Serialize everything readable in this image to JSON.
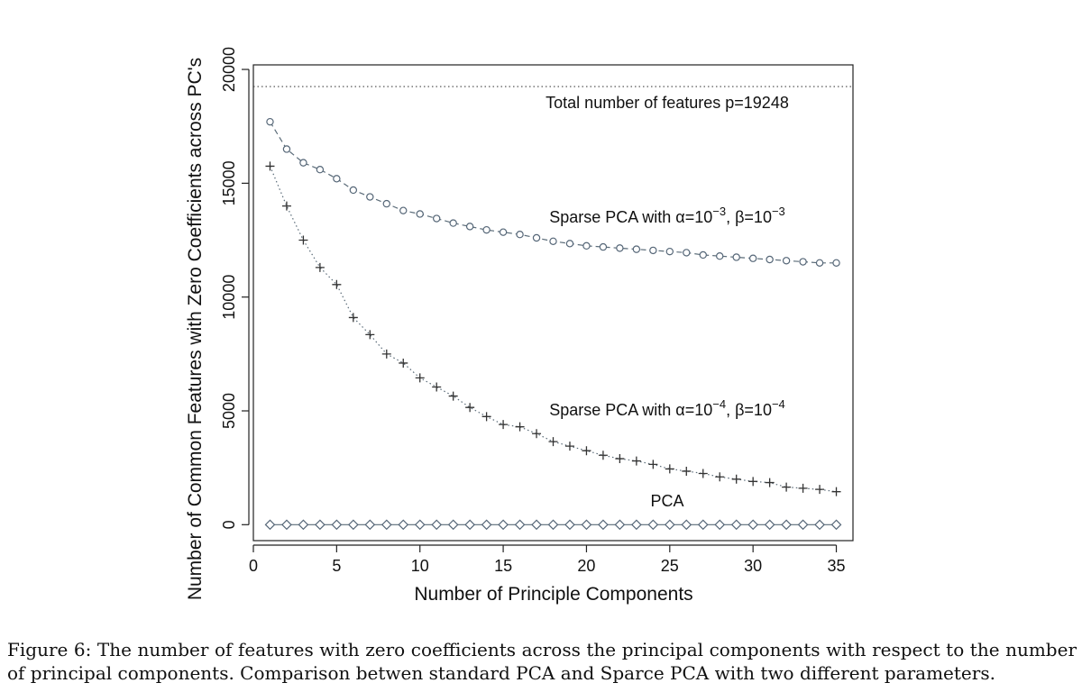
{
  "chart_data": {
    "type": "line",
    "xlabel": "Number of Principle Components",
    "ylabel": "Number of Common Features with Zero Coefficients across PC's",
    "xlim": [
      0,
      36
    ],
    "ylim": [
      -700,
      20200
    ],
    "x_ticks": [
      "0",
      "5",
      "10",
      "15",
      "20",
      "25",
      "30",
      "35"
    ],
    "y_ticks": [
      "0",
      "5000",
      "10000",
      "15000",
      "20000"
    ],
    "reference_line": {
      "value": 19248,
      "label": "Total number of features p=19248"
    },
    "x": [
      1,
      2,
      3,
      4,
      5,
      6,
      7,
      8,
      9,
      10,
      11,
      12,
      13,
      14,
      15,
      16,
      17,
      18,
      19,
      20,
      21,
      22,
      23,
      24,
      25,
      26,
      27,
      28,
      29,
      30,
      31,
      32,
      33,
      34,
      35
    ],
    "series": [
      {
        "name": "Sparse PCA with α=10⁻³, β=10⁻³",
        "label_prefix": "Sparse PCA with α=10",
        "label_exp1": "−3",
        "label_mid": ", β=10",
        "label_exp2": "−3",
        "marker": "circle",
        "line_style": "dashed",
        "values": [
          17700,
          16500,
          15900,
          15600,
          15200,
          14700,
          14400,
          14100,
          13800,
          13650,
          13450,
          13250,
          13100,
          12950,
          12850,
          12750,
          12600,
          12450,
          12350,
          12250,
          12200,
          12150,
          12100,
          12050,
          12000,
          11950,
          11850,
          11800,
          11750,
          11700,
          11650,
          11600,
          11550,
          11500,
          11500
        ]
      },
      {
        "name": "Sparse PCA with α=10⁻⁴, β=10⁻⁴",
        "label_prefix": "Sparse PCA with α=10",
        "label_exp1": "−4",
        "label_mid": ", β=10",
        "label_exp2": "−4",
        "marker": "plus",
        "line_style": "dotted",
        "values": [
          15750,
          14000,
          12500,
          11300,
          10550,
          9100,
          8350,
          7500,
          7100,
          6450,
          6050,
          5650,
          5150,
          4750,
          4400,
          4300,
          4000,
          3650,
          3450,
          3250,
          3050,
          2900,
          2800,
          2650,
          2450,
          2350,
          2250,
          2100,
          2000,
          1900,
          1850,
          1650,
          1600,
          1550,
          1450
        ]
      },
      {
        "name": "PCA",
        "marker": "diamond",
        "line_style": "solid",
        "values": [
          0,
          0,
          0,
          0,
          0,
          0,
          0,
          0,
          0,
          0,
          0,
          0,
          0,
          0,
          0,
          0,
          0,
          0,
          0,
          0,
          0,
          0,
          0,
          0,
          0,
          0,
          0,
          0,
          0,
          0,
          0,
          0,
          0,
          0,
          0
        ]
      }
    ],
    "colors": {
      "line": "#5a6b78",
      "marker": "#556677",
      "axis": "#222222"
    }
  },
  "caption": "Figure 6: The number of features with zero coefficients across the principal components with respect to the number of principal components. Comparison betwen standard PCA and Sparce PCA with two different parameters."
}
